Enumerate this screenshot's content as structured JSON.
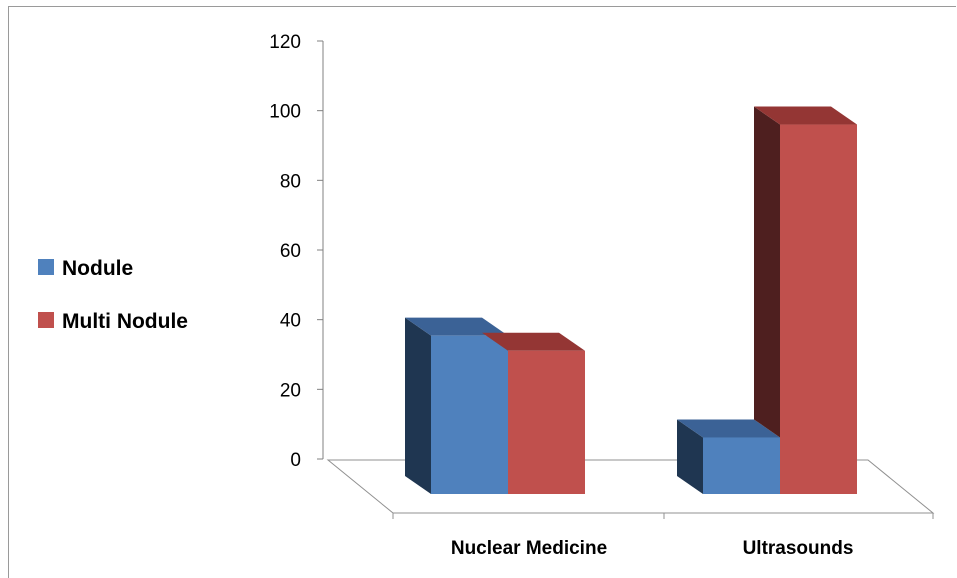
{
  "chart_data": {
    "type": "bar",
    "categories": [
      "Nuclear Medicine",
      "Ultrasounds"
    ],
    "series": [
      {
        "name": "Nodule",
        "values": [
          42,
          15
        ],
        "color": "#4F81BD",
        "side_color": "#1F3651",
        "top_color": "#3B6296"
      },
      {
        "name": "Multi Nodule",
        "values": [
          38,
          98
        ],
        "color": "#C0504D",
        "side_color": "#4E1F1F",
        "top_color": "#943634"
      }
    ],
    "ylim": [
      0,
      120
    ],
    "yticks": [
      "0",
      "20",
      "40",
      "60",
      "80",
      "100",
      "120"
    ],
    "legend_position": "left",
    "grid": false,
    "style": "3d"
  }
}
